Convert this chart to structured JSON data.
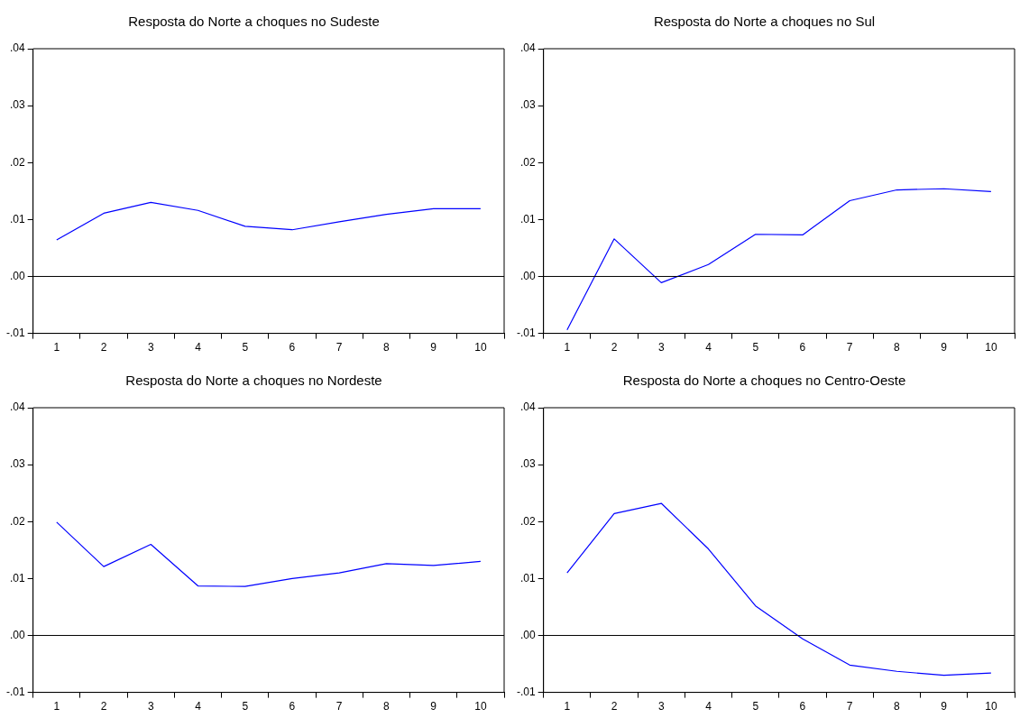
{
  "chart_data": [
    {
      "type": "line",
      "title": "Resposta do Norte a choques no Sudeste",
      "categories": [
        "1",
        "2",
        "3",
        "4",
        "5",
        "6",
        "7",
        "8",
        "9",
        "10"
      ],
      "series": [
        {
          "color": "#0000ff",
          "values": [
            0.0064,
            0.0111,
            0.013,
            0.0116,
            0.0088,
            0.0082,
            0.0096,
            0.0109,
            0.0119,
            0.0119
          ]
        }
      ],
      "ylim": [
        -0.01,
        0.04
      ],
      "yticks": [
        {
          "value": -0.01,
          "label": "-.01"
        },
        {
          "value": 0,
          "label": ".00"
        },
        {
          "value": 0.01,
          "label": ".01"
        },
        {
          "value": 0.02,
          "label": ".02"
        },
        {
          "value": 0.03,
          "label": ".03"
        },
        {
          "value": 0.04,
          "label": ".04"
        }
      ],
      "ref_lines": [
        {
          "axis": "y",
          "value": 0,
          "color": "#000000"
        }
      ],
      "marker": "none",
      "legend": false,
      "grid": false
    },
    {
      "type": "line",
      "title": "Resposta do Norte a choques no Sul",
      "categories": [
        "1",
        "2",
        "3",
        "4",
        "5",
        "6",
        "7",
        "8",
        "9",
        "10"
      ],
      "series": [
        {
          "color": "#0000ff",
          "values": [
            -0.0094,
            0.0066,
            -0.0011,
            0.0021,
            0.0074,
            0.0073,
            0.0133,
            0.0152,
            0.0154,
            0.0149
          ]
        }
      ],
      "ylim": [
        -0.01,
        0.04
      ],
      "yticks": [
        {
          "value": -0.01,
          "label": "-.01"
        },
        {
          "value": 0,
          "label": ".00"
        },
        {
          "value": 0.01,
          "label": ".01"
        },
        {
          "value": 0.02,
          "label": ".02"
        },
        {
          "value": 0.03,
          "label": ".03"
        },
        {
          "value": 0.04,
          "label": ".04"
        }
      ],
      "ref_lines": [
        {
          "axis": "y",
          "value": 0,
          "color": "#000000"
        }
      ],
      "marker": "none",
      "legend": false,
      "grid": false
    },
    {
      "type": "line",
      "title": "Resposta do Norte a choques no Nordeste",
      "categories": [
        "1",
        "2",
        "3",
        "4",
        "5",
        "6",
        "7",
        "8",
        "9",
        "10"
      ],
      "series": [
        {
          "color": "#0000ff",
          "values": [
            0.0199,
            0.0121,
            0.016,
            0.0087,
            0.0086,
            0.01,
            0.011,
            0.0126,
            0.0123,
            0.013
          ]
        }
      ],
      "ylim": [
        -0.01,
        0.04
      ],
      "yticks": [
        {
          "value": -0.01,
          "label": "-.01"
        },
        {
          "value": 0,
          "label": ".00"
        },
        {
          "value": 0.01,
          "label": ".01"
        },
        {
          "value": 0.02,
          "label": ".02"
        },
        {
          "value": 0.03,
          "label": ".03"
        },
        {
          "value": 0.04,
          "label": ".04"
        }
      ],
      "ref_lines": [
        {
          "axis": "y",
          "value": 0,
          "color": "#000000"
        }
      ],
      "marker": "none",
      "legend": false,
      "grid": false
    },
    {
      "type": "line",
      "title": "Resposta do Norte a choques no Centro-Oeste",
      "categories": [
        "1",
        "2",
        "3",
        "4",
        "5",
        "6",
        "7",
        "8",
        "9",
        "10"
      ],
      "series": [
        {
          "color": "#0000ff",
          "values": [
            0.011,
            0.0214,
            0.0232,
            0.0152,
            0.0052,
            -0.0006,
            -0.0052,
            -0.0063,
            -0.007,
            -0.0066
          ]
        }
      ],
      "ylim": [
        -0.01,
        0.04
      ],
      "yticks": [
        {
          "value": -0.01,
          "label": "-.01"
        },
        {
          "value": 0,
          "label": ".00"
        },
        {
          "value": 0.01,
          "label": ".01"
        },
        {
          "value": 0.02,
          "label": ".02"
        },
        {
          "value": 0.03,
          "label": ".03"
        },
        {
          "value": 0.04,
          "label": ".04"
        }
      ],
      "ref_lines": [
        {
          "axis": "y",
          "value": 0,
          "color": "#000000"
        }
      ],
      "marker": "none",
      "legend": false,
      "grid": false
    }
  ]
}
